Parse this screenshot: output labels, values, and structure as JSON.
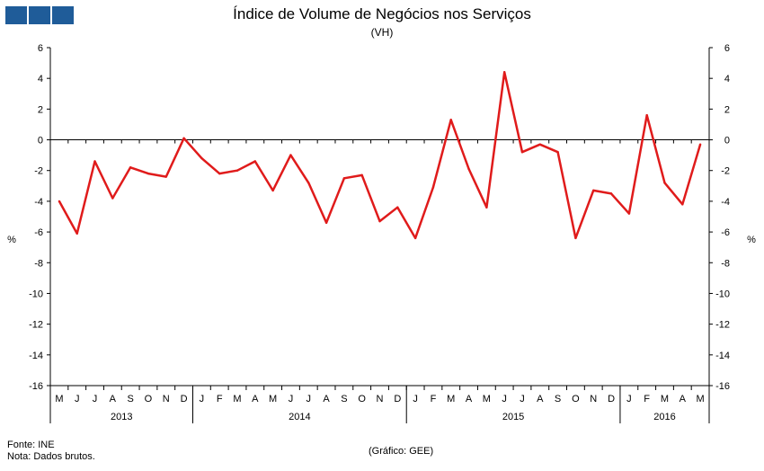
{
  "header": {
    "title": "Índice de Volume de Negócios nos Serviços",
    "subtitle": "(VH)",
    "logo_colors": [
      "#1f5c99",
      "#1f5c99",
      "#1f5c99"
    ]
  },
  "footer": {
    "source": "Fonte: INE",
    "note": "Nota: Dados brutos.",
    "credit": "(Gráfico: GEE)"
  },
  "chart_data": {
    "type": "line",
    "title": "Índice de Volume de Negócios nos Serviços",
    "subtitle": "(VH)",
    "ylabel_left": "%",
    "ylabel_right": "%",
    "ylim": [
      -16,
      6
    ],
    "yticks": [
      6,
      4,
      2,
      0,
      -2,
      -4,
      -6,
      -8,
      -10,
      -12,
      -14,
      -16
    ],
    "grid": false,
    "line_color": "#e01b1b",
    "months": [
      "M",
      "J",
      "J",
      "A",
      "S",
      "O",
      "N",
      "D",
      "J",
      "F",
      "M",
      "A",
      "M",
      "J",
      "J",
      "A",
      "S",
      "O",
      "N",
      "D",
      "J",
      "F",
      "M",
      "A",
      "M",
      "J",
      "J",
      "A",
      "S",
      "O",
      "N",
      "D",
      "J",
      "F",
      "M",
      "A",
      "M"
    ],
    "years": [
      {
        "label": "2013",
        "start": 0,
        "count": 8
      },
      {
        "label": "2014",
        "start": 8,
        "count": 12
      },
      {
        "label": "2015",
        "start": 20,
        "count": 12
      },
      {
        "label": "2016",
        "start": 32,
        "count": 5
      }
    ],
    "series": [
      {
        "name": "VH",
        "values": [
          -4.0,
          -6.1,
          -1.4,
          -3.8,
          -1.8,
          -2.2,
          -2.4,
          0.1,
          -1.2,
          -2.2,
          -2.0,
          -1.4,
          -3.3,
          -1.0,
          -2.8,
          -5.4,
          -2.5,
          -2.3,
          -5.3,
          -4.4,
          -6.4,
          -3.1,
          1.3,
          -1.9,
          -4.4,
          4.4,
          -0.8,
          -0.3,
          -0.8,
          -6.4,
          -3.3,
          -3.5,
          -4.8,
          1.6,
          -2.8,
          -4.2,
          -0.3
        ]
      }
    ]
  }
}
